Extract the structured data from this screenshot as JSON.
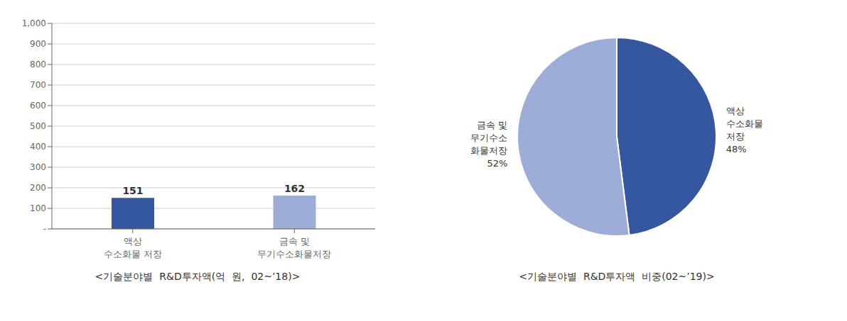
{
  "chart_data": [
    {
      "type": "bar",
      "title": "<기술분야별  R&D투자액(억  원,  02~’18)>",
      "categories": [
        "액상\n수소화물 저장",
        "금속 및\n무기수소화물저장"
      ],
      "values": [
        151,
        162
      ],
      "colors": [
        "#3457A0",
        "#9DADD8"
      ],
      "ylim": [
        0,
        1000
      ],
      "yticks": [
        {
          "value": 0,
          "label": "-"
        },
        100,
        200,
        300,
        400,
        500,
        600,
        700,
        800,
        900,
        {
          "value": 1000,
          "label": "1,000"
        }
      ],
      "grid": true,
      "data_labels": true
    },
    {
      "type": "pie",
      "title": "<기술분야별  R&D투자액  비중(02~’19)>",
      "categories": [
        "액상\n수소화물\n저장",
        "금속 및\n무기수소\n화물저장"
      ],
      "values": [
        48,
        52
      ],
      "value_labels": [
        "48%",
        "52%"
      ],
      "colors": [
        "#3457A0",
        "#9DADD8"
      ],
      "data_labels": true
    }
  ]
}
